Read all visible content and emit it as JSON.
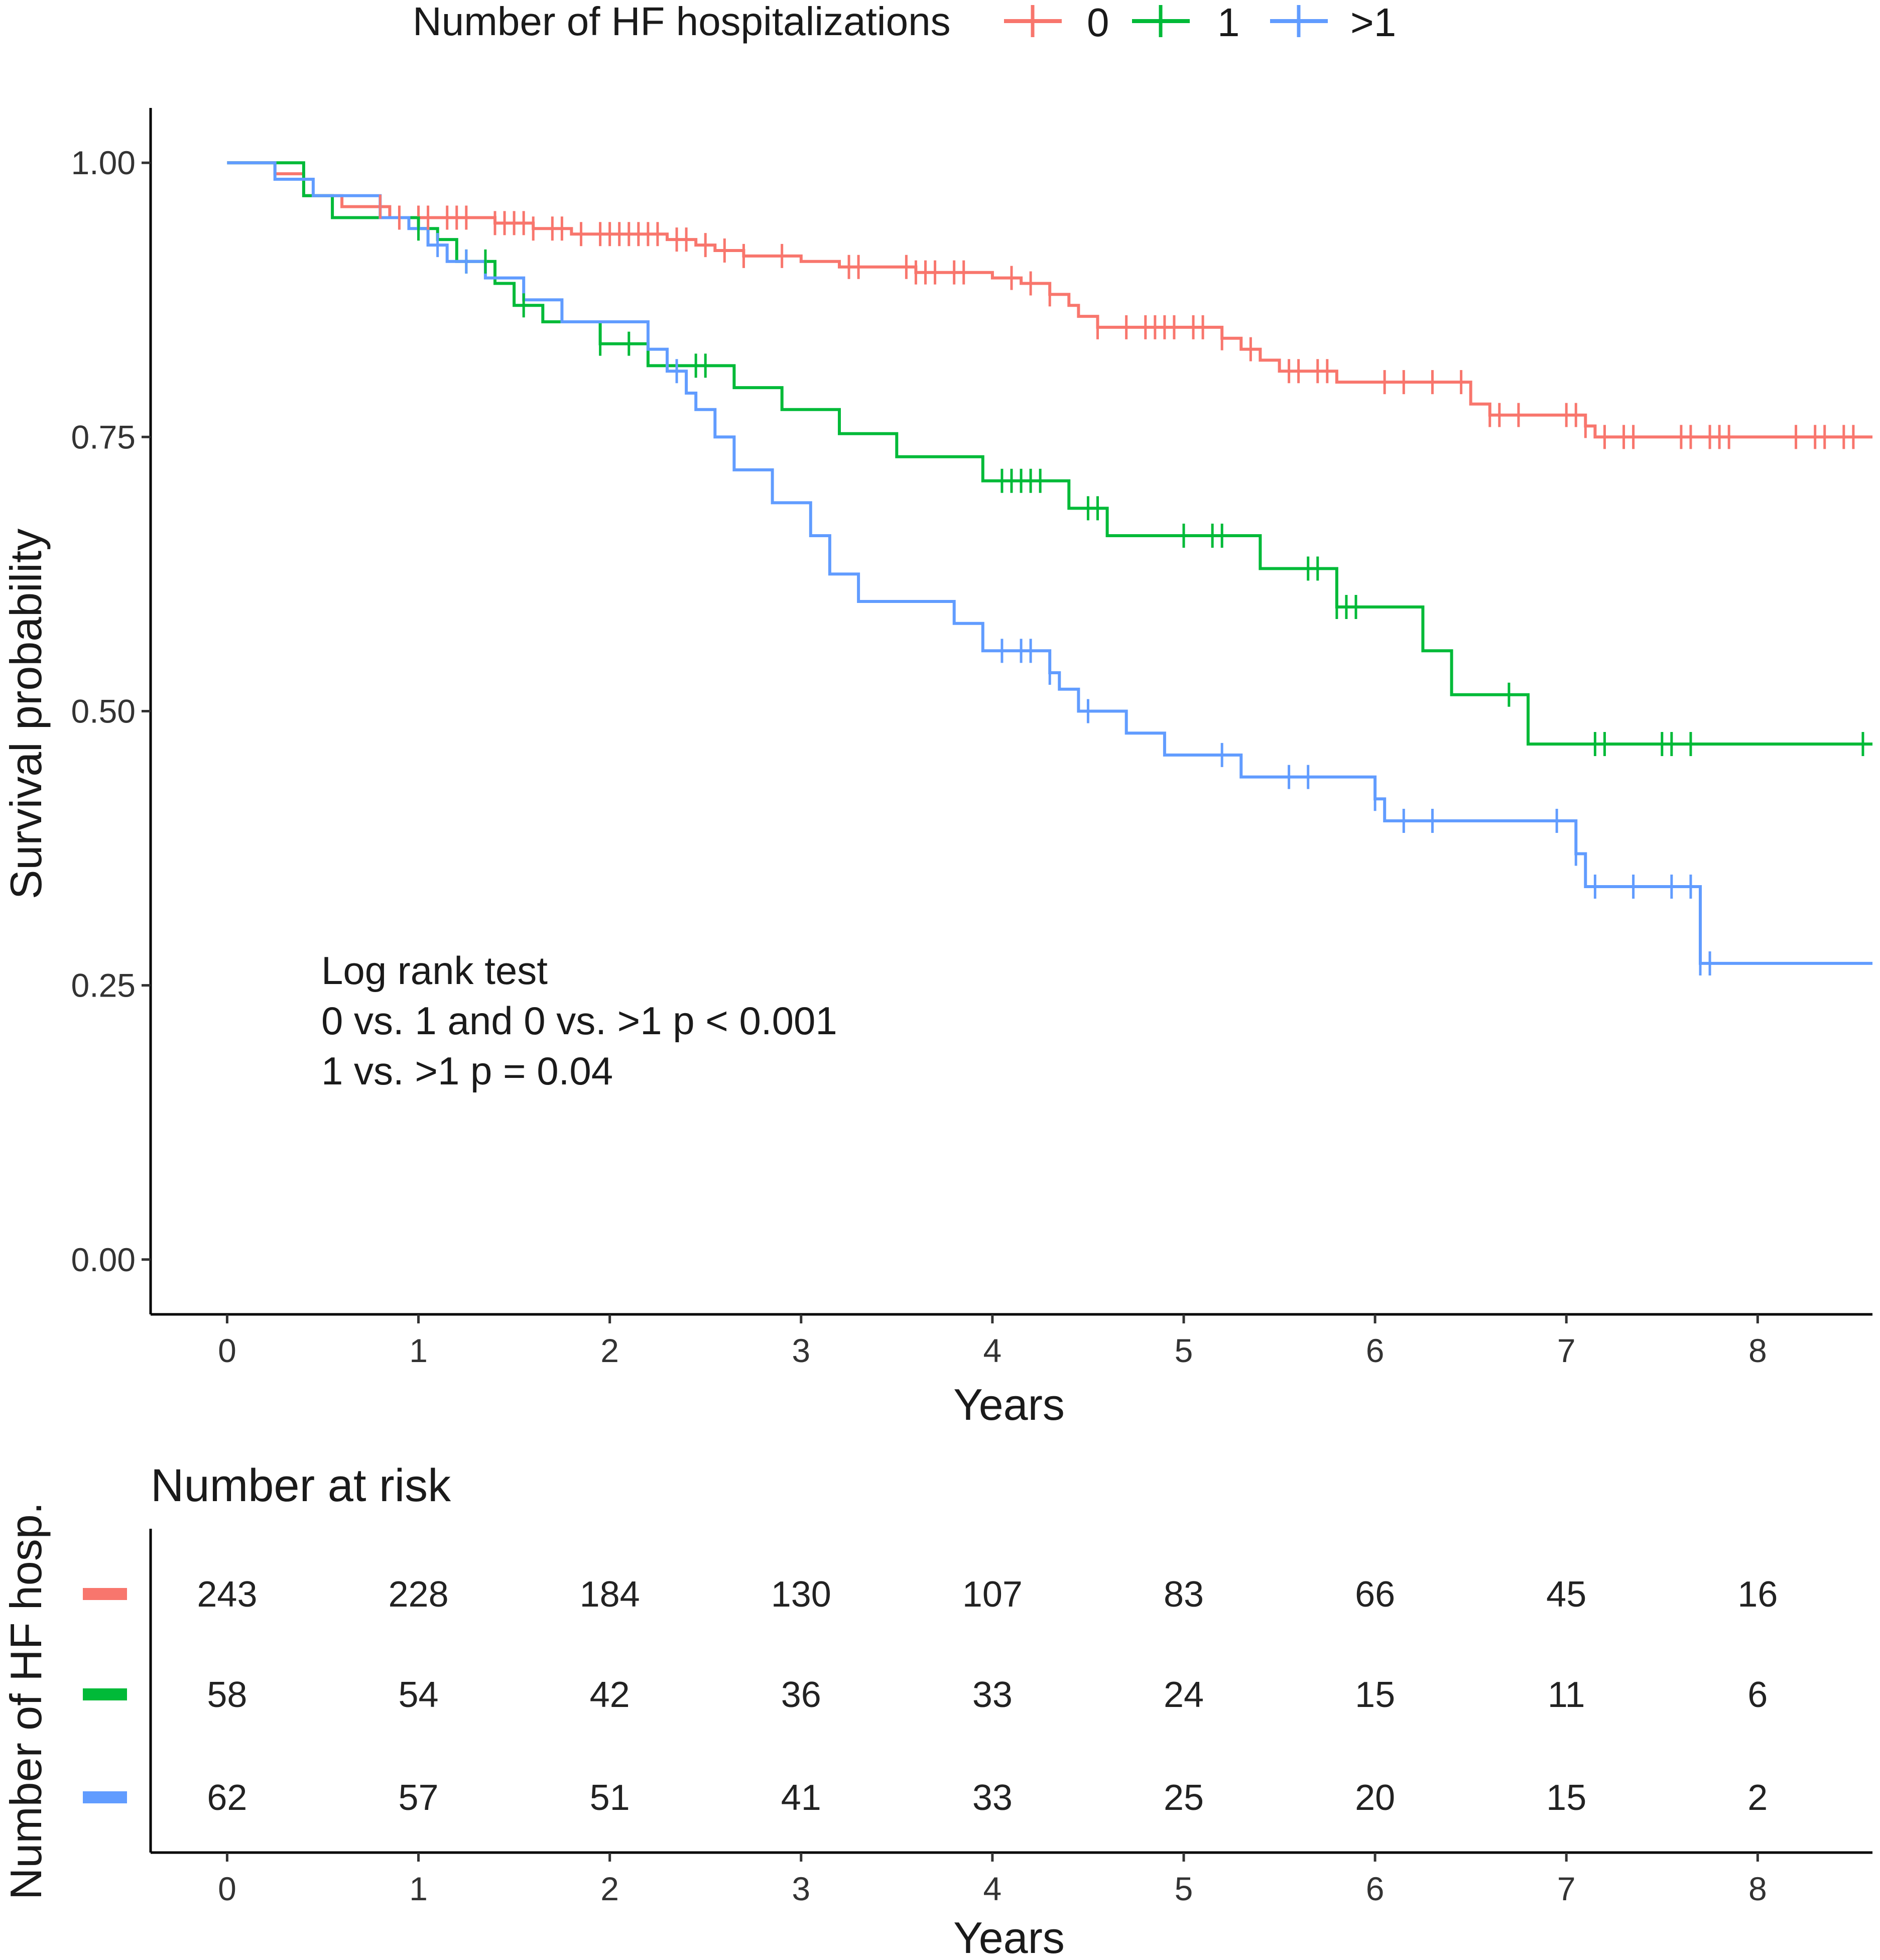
{
  "chart_data": {
    "type": "line",
    "subtype": "kaplan-meier",
    "legend": {
      "title": "Number of HF hospitalizations",
      "placement": "top",
      "entries": [
        "0",
        "1",
        ">1"
      ]
    },
    "xlabel": "Years",
    "ylabel": "Survival probability",
    "xlim": [
      -0.4,
      8.6
    ],
    "ylim": [
      -0.05,
      1.05
    ],
    "x_ticks": [
      0,
      1,
      2,
      3,
      4,
      5,
      6,
      7,
      8
    ],
    "x_tick_labels": [
      "0",
      "1",
      "2",
      "3",
      "4",
      "5",
      "6",
      "7",
      "8"
    ],
    "y_ticks": [
      0,
      0.25,
      0.5,
      0.75,
      1.0
    ],
    "y_tick_labels": [
      "0.00",
      "0.25",
      "0.50",
      "0.75",
      "1.00"
    ],
    "annotation": [
      "Log rank test",
      "0 vs. 1 and 0 vs. >1 p < 0.001",
      "1 vs. >1 p = 0.04"
    ],
    "series": [
      {
        "name": "0",
        "color": "#F8766D",
        "steps": [
          [
            0,
            1.0
          ],
          [
            0.25,
            0.99
          ],
          [
            0.4,
            0.97
          ],
          [
            0.6,
            0.96
          ],
          [
            0.85,
            0.95
          ],
          [
            1.3,
            0.95
          ],
          [
            1.4,
            0.945
          ],
          [
            1.6,
            0.94
          ],
          [
            1.8,
            0.935
          ],
          [
            2.3,
            0.93
          ],
          [
            2.45,
            0.925
          ],
          [
            2.55,
            0.92
          ],
          [
            2.7,
            0.915
          ],
          [
            3.0,
            0.91
          ],
          [
            3.2,
            0.905
          ],
          [
            3.6,
            0.9
          ],
          [
            4.0,
            0.895
          ],
          [
            4.15,
            0.89
          ],
          [
            4.3,
            0.88
          ],
          [
            4.4,
            0.87
          ],
          [
            4.45,
            0.86
          ],
          [
            4.55,
            0.85
          ],
          [
            5.2,
            0.84
          ],
          [
            5.3,
            0.83
          ],
          [
            5.4,
            0.82
          ],
          [
            5.5,
            0.81
          ],
          [
            5.8,
            0.8
          ],
          [
            6.5,
            0.78
          ],
          [
            6.6,
            0.77
          ],
          [
            7.1,
            0.76
          ],
          [
            7.15,
            0.75
          ],
          [
            8.6,
            0.75
          ]
        ],
        "censor_x": [
          0.8,
          0.9,
          1.0,
          1.05,
          1.15,
          1.2,
          1.25,
          1.4,
          1.45,
          1.5,
          1.55,
          1.6,
          1.7,
          1.75,
          1.85,
          1.95,
          2.0,
          2.05,
          2.1,
          2.15,
          2.2,
          2.25,
          2.35,
          2.4,
          2.5,
          2.6,
          2.7,
          2.9,
          3.25,
          3.3,
          3.55,
          3.6,
          3.65,
          3.7,
          3.8,
          3.85,
          4.1,
          4.2,
          4.3,
          4.55,
          4.7,
          4.8,
          4.85,
          4.9,
          4.95,
          5.05,
          5.1,
          5.2,
          5.35,
          5.55,
          5.6,
          5.7,
          5.75,
          6.05,
          6.15,
          6.3,
          6.45,
          6.6,
          6.65,
          6.75,
          7.0,
          7.05,
          7.1,
          7.2,
          7.3,
          7.35,
          7.6,
          7.65,
          7.75,
          7.8,
          7.85,
          8.2,
          8.3,
          8.35,
          8.45,
          8.5
        ]
      },
      {
        "name": "1",
        "color": "#00BA38",
        "steps": [
          [
            0,
            1.0
          ],
          [
            0.4,
            0.97
          ],
          [
            0.55,
            0.95
          ],
          [
            1.0,
            0.94
          ],
          [
            1.1,
            0.93
          ],
          [
            1.2,
            0.91
          ],
          [
            1.4,
            0.89
          ],
          [
            1.5,
            0.87
          ],
          [
            1.65,
            0.855
          ],
          [
            1.95,
            0.835
          ],
          [
            2.2,
            0.815
          ],
          [
            2.65,
            0.795
          ],
          [
            2.9,
            0.775
          ],
          [
            3.2,
            0.753
          ],
          [
            3.5,
            0.732
          ],
          [
            3.95,
            0.71
          ],
          [
            4.4,
            0.685
          ],
          [
            4.6,
            0.66
          ],
          [
            5.4,
            0.63
          ],
          [
            5.8,
            0.595
          ],
          [
            6.25,
            0.555
          ],
          [
            6.4,
            0.515
          ],
          [
            6.8,
            0.47
          ],
          [
            8.6,
            0.47
          ]
        ],
        "censor_x": [
          1.0,
          1.25,
          1.35,
          1.55,
          1.95,
          2.1,
          2.45,
          2.5,
          4.05,
          4.1,
          4.15,
          4.2,
          4.25,
          4.5,
          4.55,
          5.0,
          5.15,
          5.2,
          5.65,
          5.7,
          5.8,
          5.85,
          5.9,
          6.7,
          7.15,
          7.2,
          7.5,
          7.55,
          7.65,
          8.55
        ]
      },
      {
        "name": ">1",
        "color": "#619CFF",
        "steps": [
          [
            0,
            1.0
          ],
          [
            0.25,
            0.985
          ],
          [
            0.45,
            0.97
          ],
          [
            0.8,
            0.95
          ],
          [
            0.95,
            0.94
          ],
          [
            1.05,
            0.925
          ],
          [
            1.15,
            0.91
          ],
          [
            1.35,
            0.895
          ],
          [
            1.55,
            0.875
          ],
          [
            1.75,
            0.855
          ],
          [
            2.2,
            0.83
          ],
          [
            2.3,
            0.81
          ],
          [
            2.4,
            0.79
          ],
          [
            2.45,
            0.775
          ],
          [
            2.55,
            0.75
          ],
          [
            2.65,
            0.72
          ],
          [
            2.85,
            0.69
          ],
          [
            3.05,
            0.66
          ],
          [
            3.15,
            0.625
          ],
          [
            3.3,
            0.6
          ],
          [
            3.8,
            0.58
          ],
          [
            3.95,
            0.555
          ],
          [
            4.3,
            0.535
          ],
          [
            4.35,
            0.52
          ],
          [
            4.45,
            0.5
          ],
          [
            4.7,
            0.48
          ],
          [
            4.9,
            0.46
          ],
          [
            5.3,
            0.44
          ],
          [
            6.0,
            0.42
          ],
          [
            6.05,
            0.4
          ],
          [
            7.05,
            0.37
          ],
          [
            7.1,
            0.34
          ],
          [
            7.7,
            0.27
          ],
          [
            8.6,
            0.27
          ]
        ],
        "censor_x": [
          1.1,
          1.25,
          2.35,
          4.05,
          4.15,
          4.2,
          4.3,
          4.5,
          5.2,
          5.55,
          5.65,
          6.0,
          6.15,
          6.3,
          6.95,
          7.05,
          7.15,
          7.35,
          7.55,
          7.65,
          7.7,
          7.75
        ]
      }
    ],
    "risk_table": {
      "title": "Number at risk",
      "ylabel": "Number of HF hosp.",
      "xlabel": "Years",
      "times": [
        0,
        1,
        2,
        3,
        4,
        5,
        6,
        7,
        8
      ],
      "rows": [
        {
          "group": "0",
          "color": "#F8766D",
          "values": [
            243,
            228,
            184,
            130,
            107,
            83,
            66,
            45,
            16
          ]
        },
        {
          "group": "1",
          "color": "#00BA38",
          "values": [
            58,
            54,
            42,
            36,
            33,
            24,
            15,
            11,
            6
          ]
        },
        {
          "group": ">1",
          "color": "#619CFF",
          "values": [
            62,
            57,
            51,
            41,
            33,
            25,
            20,
            15,
            2
          ]
        }
      ]
    }
  }
}
